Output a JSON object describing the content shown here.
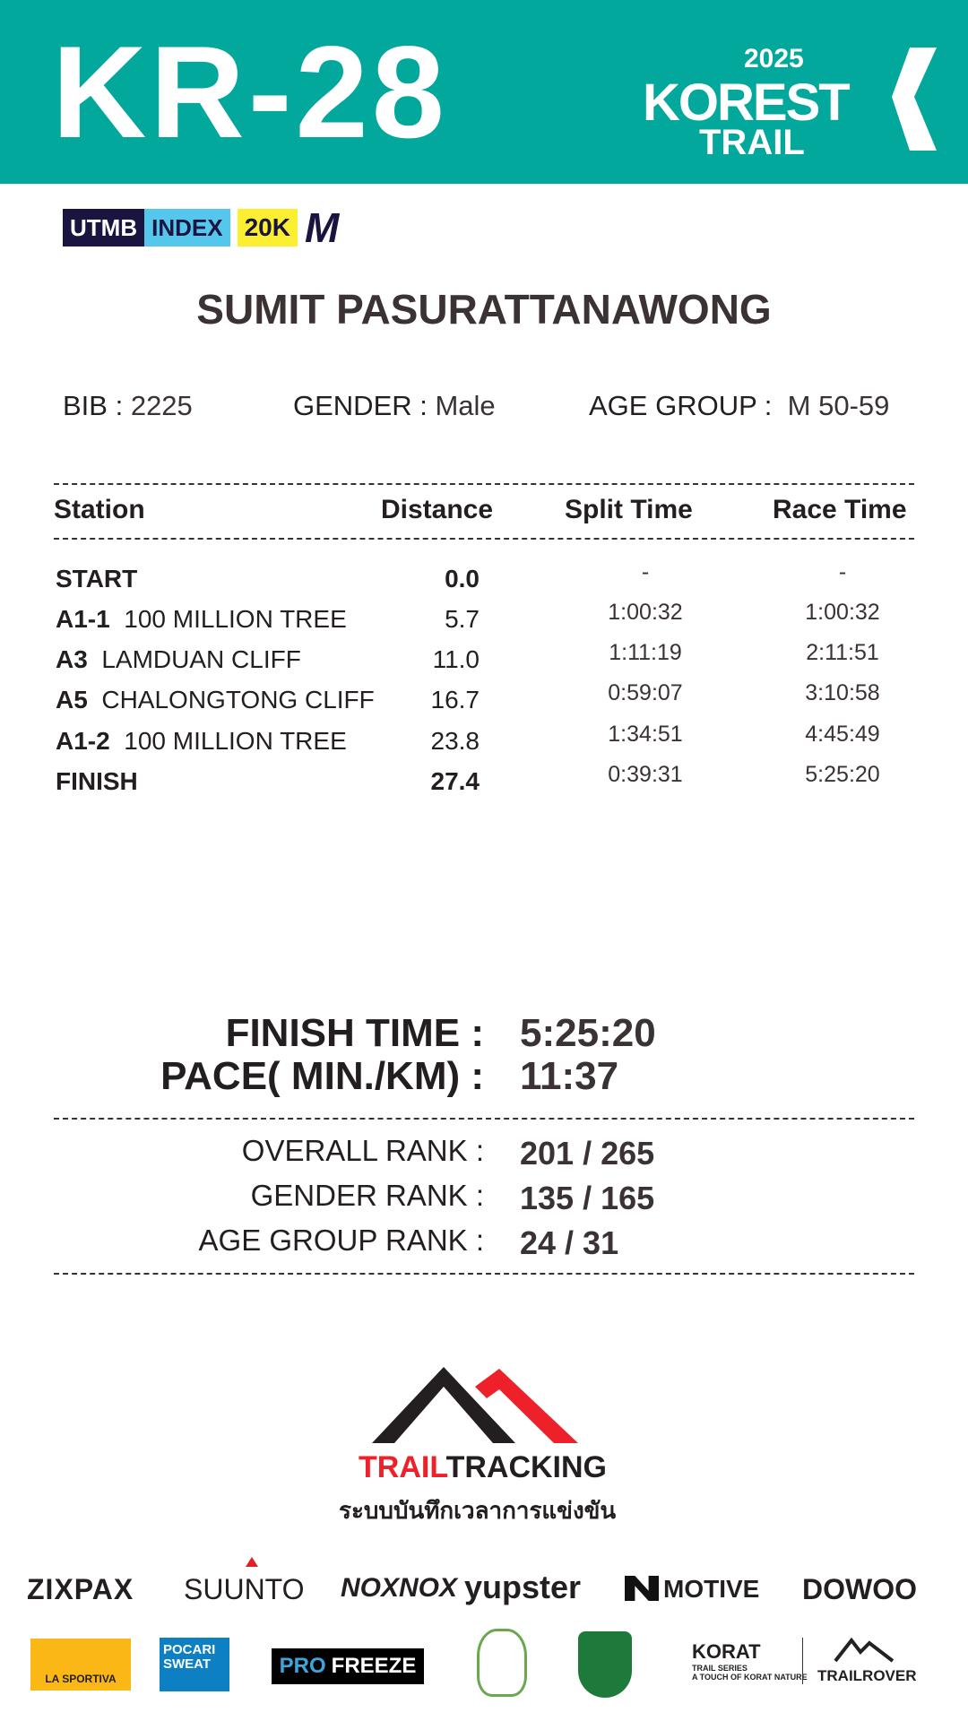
{
  "header": {
    "race_code": "KR-28",
    "event_logo": {
      "year": "2025",
      "name": "KOREST",
      "sub": "TRAIL"
    },
    "color": "#02a89c"
  },
  "badge": {
    "utmb": "UTMB",
    "index": "INDEX",
    "category": "20K",
    "letter": "M"
  },
  "runner": {
    "name": "SUMIT PASURATTANAWONG",
    "bib_label": "BIB :",
    "bib": "2225",
    "gender_label": "GENDER  :",
    "gender": "Male",
    "age_label": "AGE GROUP  :",
    "age_group": "M 50-59"
  },
  "table": {
    "headers": [
      "Station",
      "Distance",
      "Split Time",
      "Race Time"
    ],
    "rows": [
      {
        "code": "START",
        "name": "",
        "distance": "0.0",
        "split": "-",
        "race": "-"
      },
      {
        "code": "A1-1",
        "name": "100  MILLION TREE",
        "distance": "5.7",
        "split": "1:00:32",
        "race": "1:00:32"
      },
      {
        "code": "A3",
        "name": "LAMDUAN CLIFF",
        "distance": "11.0",
        "split": "1:11:19",
        "race": "2:11:51"
      },
      {
        "code": "A5",
        "name": "CHALONGTONG CLIFF",
        "distance": "16.7",
        "split": "0:59:07",
        "race": "3:10:58"
      },
      {
        "code": "A1-2",
        "name": "100  MILLION TREE",
        "distance": "23.8",
        "split": "1:34:51",
        "race": "4:45:49"
      },
      {
        "code": "FINISH",
        "name": "",
        "distance": "27.4",
        "split": "0:39:31",
        "race": "5:25:20"
      }
    ]
  },
  "summary": {
    "finish_label": "FINISH TIME :",
    "finish": "5:25:20",
    "pace_label": "PACE( MIN./KM) :",
    "pace": "11:37"
  },
  "ranks": {
    "overall_label": "OVERALL RANK  :",
    "overall": "201 / 265",
    "gender_label": "GENDER RANK  :",
    "gender": "135 / 165",
    "age_label": "AGE GROUP RANK :",
    "age": "24 / 31"
  },
  "timing": {
    "brand_red": "TRAIL",
    "brand_black": "TRACKING",
    "tagline": "ระบบบันทึกเวลาการแข่งขัน"
  },
  "sponsors_row1": [
    "ZIXPAX",
    "SUUNTO",
    "NOXNOX",
    "yupster",
    "MOTIVE",
    "DOWOO"
  ],
  "sponsors_row2": {
    "lasportiva": "LA SPORTIVA",
    "pocari": "POCARI SWEAT",
    "profreeze_a": "PRO",
    "profreeze_b": "FREEZE",
    "korat": "KORAT",
    "korat_sub": "TRAIL SERIES",
    "korat_tag": "A TOUCH OF KORAT NATURE",
    "trailrover": "TRAILROVER"
  }
}
